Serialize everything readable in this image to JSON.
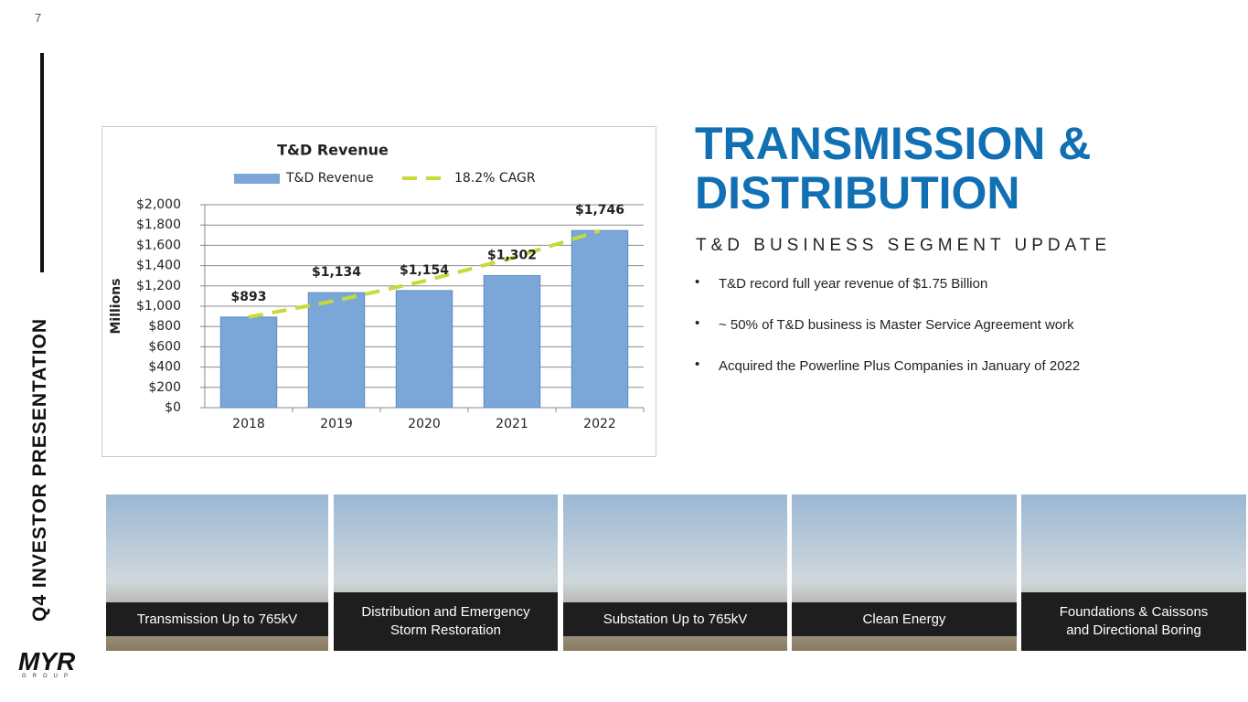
{
  "page_number": "7",
  "side_title": "Q4 INVESTOR PRESENTATION",
  "title_lines": [
    "TRANSMISSION &",
    "DISTRIBUTION"
  ],
  "subtitle": "T&D BUSINESS SEGMENT UPDATE",
  "bullets": [
    "T&D record full year revenue of $1.75 Billion",
    "~ 50% of T&D business is Master Service Agreement work",
    "Acquired the Powerline Plus Companies in January of 2022"
  ],
  "photo_captions": [
    [
      "Transmission Up to 765kV"
    ],
    [
      "Distribution and Emergency",
      "Storm Restoration"
    ],
    [
      "Substation Up to 765kV"
    ],
    [
      "Clean Energy"
    ],
    [
      "Foundations & Caissons",
      "and Directional Boring"
    ]
  ],
  "logo": {
    "mark": "MYR",
    "word": "GROUP"
  },
  "chart_data": {
    "type": "bar",
    "title": "T&D Revenue",
    "ylabel": "Millions",
    "categories": [
      "2018",
      "2019",
      "2020",
      "2021",
      "2022"
    ],
    "series": [
      {
        "name": "T&D Revenue",
        "type": "bar",
        "color": "#7aa7d8",
        "values": [
          893,
          1134,
          1154,
          1302,
          1746
        ],
        "value_labels": [
          "$893",
          "$1,134",
          "$1,154",
          "$1,302",
          "$1,746"
        ]
      },
      {
        "name": "18.2% CAGR",
        "type": "line",
        "color": "#c9d93a",
        "values": [
          893,
          1056,
          1248,
          1475,
          1743
        ]
      }
    ],
    "ylim": [
      0,
      2000
    ],
    "yticks": [
      {
        "value": 0,
        "label": "$0"
      },
      {
        "value": 200,
        "label": "$200"
      },
      {
        "value": 400,
        "label": "$400"
      },
      {
        "value": 600,
        "label": "$600"
      },
      {
        "value": 800,
        "label": "$800"
      },
      {
        "value": 1000,
        "label": "$1,000"
      },
      {
        "value": 1200,
        "label": "$1,200"
      },
      {
        "value": 1400,
        "label": "$1,400"
      },
      {
        "value": 1600,
        "label": "$1,600"
      },
      {
        "value": 1800,
        "label": "$1,800"
      },
      {
        "value": 2000,
        "label": "$2,000"
      }
    ],
    "grid": true,
    "legend": "top"
  }
}
